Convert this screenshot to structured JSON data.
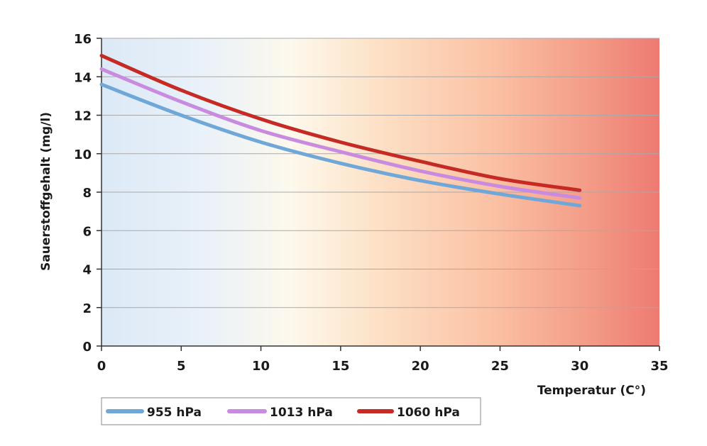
{
  "chart_data": {
    "type": "line",
    "xlabel": "Temperatur (C°)",
    "ylabel": "Sauerstoffgehalt (mg/l)",
    "xlim": [
      0,
      35
    ],
    "ylim": [
      0,
      16
    ],
    "x_ticks": [
      0,
      5,
      10,
      15,
      20,
      25,
      30,
      35
    ],
    "y_ticks": [
      0,
      2,
      4,
      6,
      8,
      10,
      12,
      14,
      16
    ],
    "grid": "horizontal",
    "legend_position": "bottom-left",
    "background": "gradient from light blue (cold) to red (warm)",
    "x": [
      0,
      5,
      10,
      15,
      20,
      25,
      30
    ],
    "series": [
      {
        "name": "955 hPa",
        "color": "#6fa8d8",
        "values": [
          13.6,
          12.0,
          10.6,
          9.5,
          8.6,
          7.9,
          7.3
        ]
      },
      {
        "name": "1013 hPa",
        "color": "#c98be0",
        "values": [
          14.4,
          12.7,
          11.2,
          10.1,
          9.1,
          8.3,
          7.7
        ]
      },
      {
        "name": "1060 hPa",
        "color": "#c62a24",
        "values": [
          15.1,
          13.3,
          11.8,
          10.6,
          9.6,
          8.7,
          8.1
        ]
      }
    ]
  }
}
